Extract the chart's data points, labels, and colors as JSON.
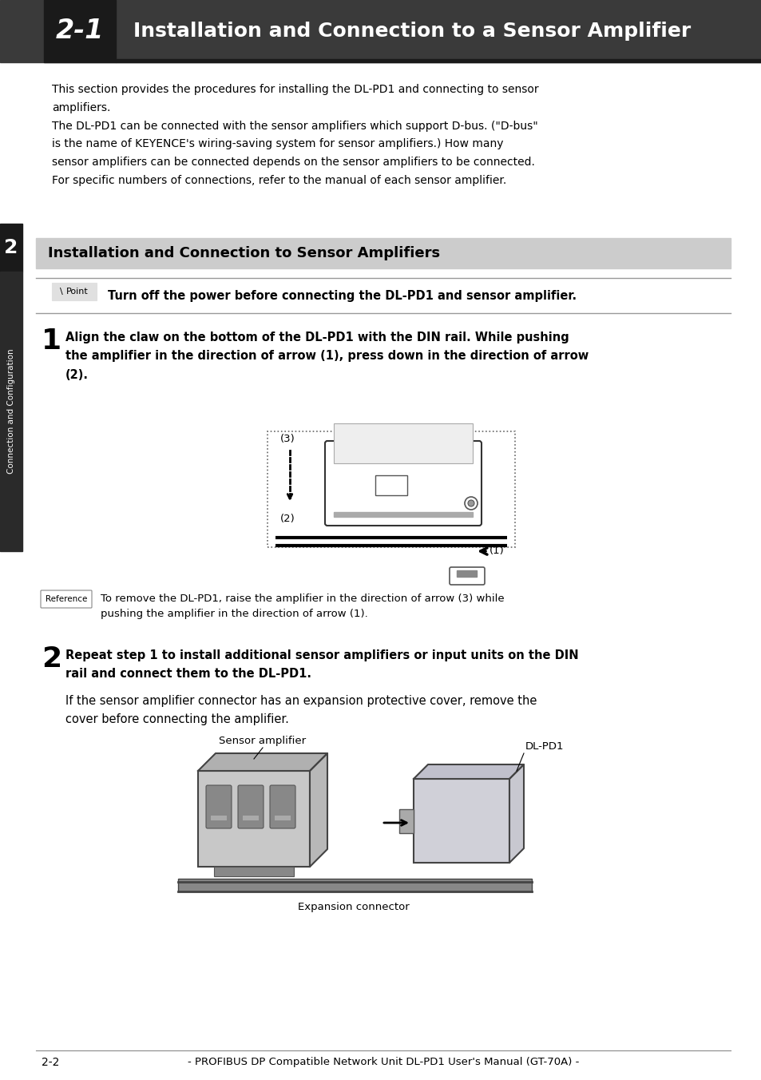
{
  "page_bg": "#ffffff",
  "header_bg": "#3a3a3a",
  "header_number": "2-1",
  "header_title": "Installation and Connection to a Sensor Amplifier",
  "sidebar_bg": "#1a1a1a",
  "sidebar_number": "2",
  "sidebar_text": "Connection and Configuration",
  "section_header_bg": "#cccccc",
  "section_header_text": "Installation and Connection to Sensor Amplifiers",
  "intro_text_1": "This section provides the procedures for installing the DL-PD1 and connecting to sensor\namplifiers.\nThe DL-PD1 can be connected with the sensor amplifiers which support D-bus. (\"D-bus\"\nis the name of KEYENCE's wiring-saving system for sensor amplifiers.) How many\nsensor amplifiers can be connected depends on the sensor amplifiers to be connected.\nFor specific numbers of connections, refer to the manual of each sensor amplifier.",
  "point_label": "Point",
  "point_text": "Turn off the power before connecting the DL-PD1 and sensor amplifier.",
  "step1_num": "1",
  "step1_text": "Align the claw on the bottom of the DL-PD1 with the DIN rail. While pushing\nthe amplifier in the direction of arrow (1), press down in the direction of arrow\n(2).",
  "step1_labels": [
    "(3)",
    "(2)",
    "(1)"
  ],
  "reference_label": "Reference",
  "reference_text": "To remove the DL-PD1, raise the amplifier in the direction of arrow (3) while\npushing the amplifier in the direction of arrow (1).",
  "step2_num": "2",
  "step2_text_bold": "Repeat step 1 to install additional sensor amplifiers or input units on the DIN\nrail and connect them to the DL-PD1.",
  "step2_text_normal": "If the sensor amplifier connector has an expansion protective cover, remove the\ncover before connecting the amplifier.",
  "diagram2_label_sa": "Sensor amplifier",
  "diagram2_label_dlpd1": "DL-PD1",
  "diagram2_label_exp": "Expansion connector",
  "footer_page": "2-2",
  "footer_text": "- PROFIBUS DP Compatible Network Unit DL-PD1 User's Manual (GT-70A) -"
}
